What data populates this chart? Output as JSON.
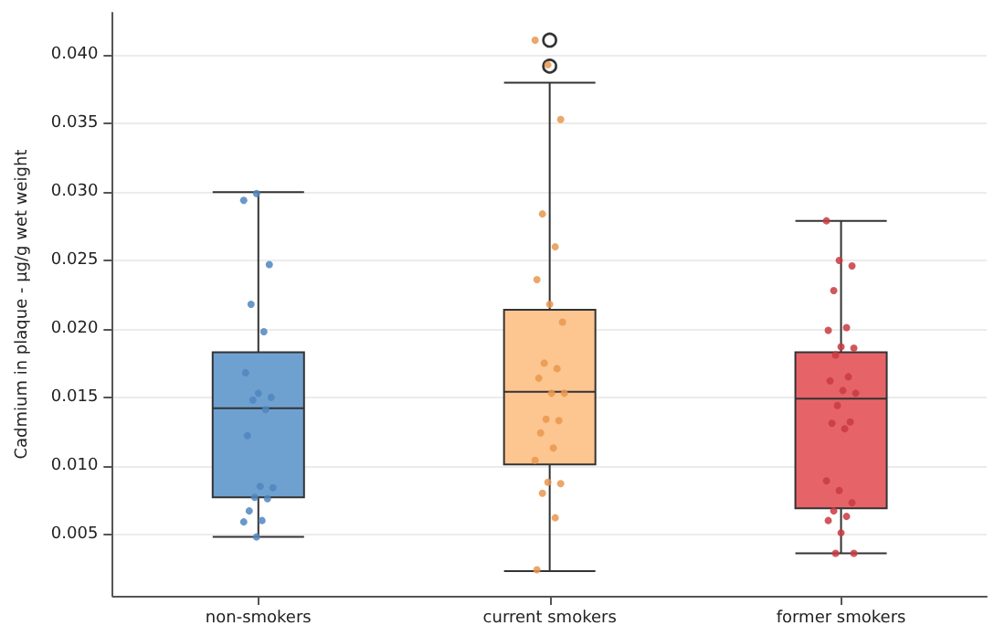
{
  "chart_data": {
    "type": "box",
    "ylabel": "Cadmium in plaque - µg/g wet weight",
    "categories": [
      "non-smokers",
      "current smokers",
      "former smokers"
    ],
    "colors": [
      "#6fa1d0",
      "#fdc590",
      "#e66468"
    ],
    "boxes": [
      {
        "low": 0.0048,
        "q1": 0.0077,
        "median": 0.0142,
        "q3": 0.0183,
        "high": 0.03
      },
      {
        "low": 0.0023,
        "q1": 0.0101,
        "median": 0.0154,
        "q3": 0.0214,
        "high": 0.038,
        "outliers": [
          0.0392,
          0.0411
        ]
      },
      {
        "low": 0.0036,
        "q1": 0.0069,
        "median": 0.0149,
        "q3": 0.0183,
        "high": 0.0279
      }
    ],
    "series": [
      {
        "type": "scatter",
        "color": "#4f86bf",
        "x": [
          "non-smokers",
          "non-smokers",
          "non-smokers",
          "non-smokers",
          "non-smokers",
          "non-smokers",
          "non-smokers",
          "non-smokers",
          "non-smokers",
          "non-smokers",
          "non-smokers",
          "non-smokers",
          "non-smokers",
          "non-smokers",
          "non-smokers",
          "non-smokers",
          "non-smokers",
          "non-smokers",
          "non-smokers"
        ],
        "values": [
          0.0294,
          0.0299,
          0.0247,
          0.0218,
          0.0198,
          0.0168,
          0.0153,
          0.015,
          0.0148,
          0.0141,
          0.0122,
          0.0085,
          0.0084,
          0.0077,
          0.0076,
          0.0067,
          0.006,
          0.0059,
          0.0048
        ]
      },
      {
        "type": "scatter",
        "color": "#e8984e",
        "x": [
          "current smokers",
          "current smokers",
          "current smokers",
          "current smokers",
          "current smokers",
          "current smokers",
          "current smokers",
          "current smokers",
          "current smokers",
          "current smokers",
          "current smokers",
          "current smokers",
          "current smokers",
          "current smokers",
          "current smokers",
          "current smokers",
          "current smokers",
          "current smokers",
          "current smokers",
          "current smokers",
          "current smokers",
          "current smokers",
          "current smokers"
        ],
        "values": [
          0.0411,
          0.0393,
          0.0353,
          0.0284,
          0.026,
          0.0236,
          0.0218,
          0.0205,
          0.0175,
          0.0171,
          0.0164,
          0.0153,
          0.0153,
          0.0134,
          0.0133,
          0.0124,
          0.0113,
          0.0104,
          0.0088,
          0.0087,
          0.008,
          0.0062,
          0.0024
        ]
      },
      {
        "type": "scatter",
        "color": "#c93a42",
        "x": [
          "former smokers",
          "former smokers",
          "former smokers",
          "former smokers",
          "former smokers",
          "former smokers",
          "former smokers",
          "former smokers",
          "former smokers",
          "former smokers",
          "former smokers",
          "former smokers",
          "former smokers",
          "former smokers",
          "former smokers",
          "former smokers",
          "former smokers",
          "former smokers",
          "former smokers",
          "former smokers",
          "former smokers",
          "former smokers",
          "former smokers",
          "former smokers",
          "former smokers",
          "former smokers"
        ],
        "values": [
          0.0279,
          0.025,
          0.0246,
          0.0228,
          0.0201,
          0.0199,
          0.0187,
          0.0186,
          0.0181,
          0.0165,
          0.0162,
          0.0155,
          0.0153,
          0.0144,
          0.0132,
          0.0131,
          0.0127,
          0.0089,
          0.0082,
          0.0073,
          0.0067,
          0.0063,
          0.006,
          0.0051,
          0.0036,
          0.0036
        ]
      }
    ],
    "ylim": [
      0.0005,
      0.0431
    ],
    "yticks": [
      {
        "value": 0.005,
        "label": "0.005"
      },
      {
        "value": 0.01,
        "label": "0.010"
      },
      {
        "value": 0.015,
        "label": "0.015"
      },
      {
        "value": 0.02,
        "label": "0.020"
      },
      {
        "value": 0.025,
        "label": "0.025"
      },
      {
        "value": 0.03,
        "label": "0.030"
      },
      {
        "value": 0.035,
        "label": "0.035"
      },
      {
        "value": 0.04,
        "label": "0.040"
      }
    ],
    "grid": "y",
    "marker": "circle"
  }
}
